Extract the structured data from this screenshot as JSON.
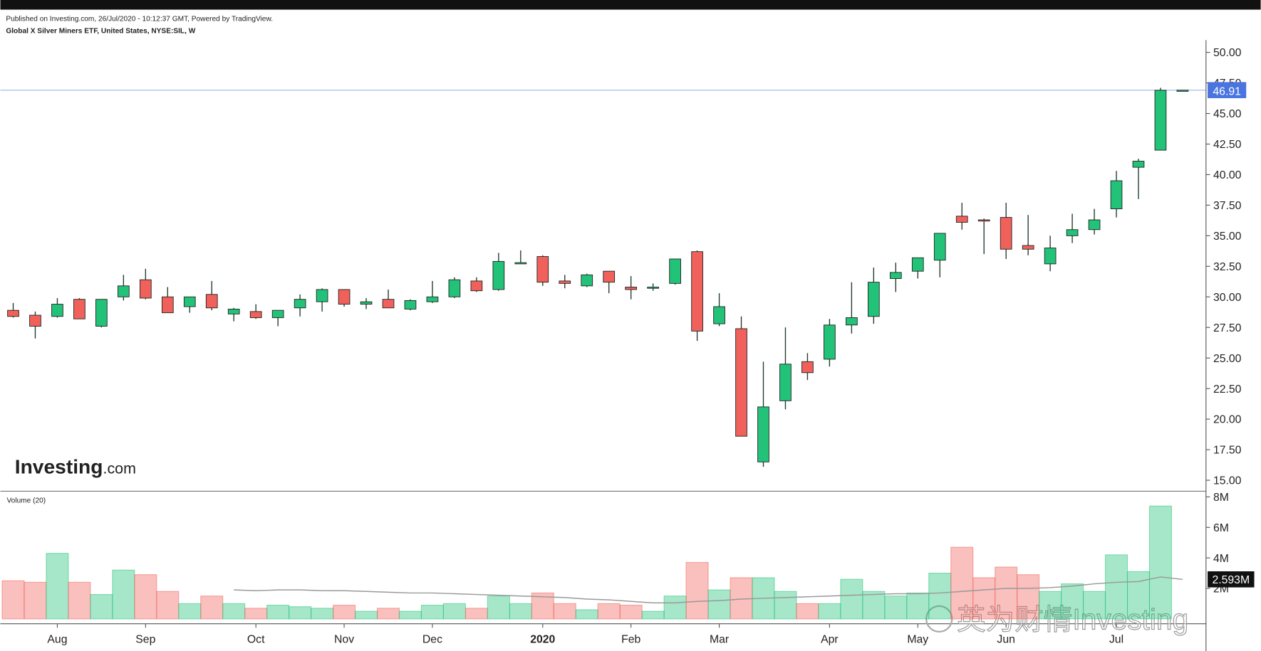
{
  "chart_data": {
    "type": "candlestick",
    "subtitle": "Published on Investing.com, 26/Jul/2020 - 10:12:37 GMT, Powered by TradingView.",
    "title": "Global X Silver Miners ETF, United States, NYSE:SIL, W",
    "logo": {
      "name": "Investing",
      "suffix": ".com"
    },
    "watermark": "英为财情Investing",
    "categories": [
      null,
      null,
      "Aug",
      null,
      null,
      null,
      "Sep",
      null,
      null,
      null,
      null,
      "Oct",
      null,
      null,
      null,
      "Nov",
      null,
      null,
      null,
      "Dec",
      null,
      null,
      null,
      null,
      "2020",
      null,
      null,
      null,
      "Feb",
      null,
      null,
      null,
      "Mar",
      null,
      null,
      null,
      null,
      "Apr",
      null,
      null,
      null,
      "May",
      null,
      null,
      null,
      "Jun",
      null,
      null,
      null,
      null,
      "Jul",
      null,
      null,
      null
    ],
    "open": [
      28.9,
      28.5,
      28.4,
      29.8,
      27.6,
      30.0,
      31.4,
      30.0,
      29.2,
      30.2,
      28.6,
      28.8,
      28.3,
      29.1,
      29.6,
      30.6,
      29.4,
      29.8,
      29.0,
      29.6,
      30.0,
      31.3,
      30.6,
      32.7,
      33.3,
      31.3,
      30.9,
      32.1,
      30.8,
      30.7,
      31.1,
      33.7,
      27.8,
      27.4,
      16.5,
      21.5,
      24.7,
      24.9,
      27.7,
      28.4,
      31.5,
      32.1,
      33.0,
      36.6,
      36.3,
      36.5,
      34.2,
      32.7,
      35.0,
      35.5,
      37.2,
      40.6,
      42.0,
      46.91
    ],
    "high": [
      29.5,
      28.8,
      29.9,
      29.9,
      29.8,
      31.8,
      32.3,
      30.8,
      30.0,
      31.3,
      29.1,
      29.4,
      28.9,
      30.2,
      30.7,
      30.6,
      29.9,
      30.6,
      29.8,
      31.3,
      31.6,
      31.6,
      33.6,
      33.8,
      33.4,
      31.8,
      31.9,
      32.1,
      31.7,
      31.1,
      33.1,
      33.8,
      30.3,
      28.4,
      24.7,
      27.5,
      25.4,
      28.2,
      31.2,
      32.4,
      32.8,
      33.2,
      35.2,
      37.7,
      36.4,
      37.7,
      36.7,
      35.0,
      36.8,
      37.2,
      40.3,
      41.3,
      47.1,
      46.91
    ],
    "low": [
      28.3,
      26.6,
      28.3,
      28.2,
      27.5,
      29.7,
      29.8,
      28.7,
      28.7,
      28.9,
      28.0,
      28.2,
      27.6,
      28.4,
      28.8,
      29.2,
      29.0,
      29.1,
      28.9,
      29.5,
      29.9,
      30.4,
      30.5,
      32.7,
      30.9,
      30.7,
      30.8,
      30.3,
      29.8,
      30.5,
      31.0,
      26.4,
      27.6,
      18.6,
      16.1,
      20.8,
      23.2,
      24.3,
      27.0,
      27.8,
      30.4,
      31.5,
      31.6,
      35.5,
      33.5,
      33.1,
      33.4,
      32.1,
      34.4,
      35.1,
      36.5,
      38.0,
      42.0,
      46.91
    ],
    "close": [
      28.4,
      27.6,
      29.4,
      28.2,
      29.8,
      30.9,
      29.9,
      28.7,
      30.0,
      29.1,
      29.0,
      28.3,
      28.9,
      29.8,
      30.6,
      29.4,
      29.6,
      29.1,
      29.7,
      30.0,
      31.4,
      30.5,
      32.9,
      32.8,
      31.2,
      31.1,
      31.8,
      31.2,
      30.6,
      30.8,
      33.1,
      27.2,
      29.2,
      18.6,
      21.0,
      24.5,
      23.8,
      27.7,
      28.3,
      31.2,
      32.0,
      33.2,
      35.2,
      36.1,
      36.2,
      33.9,
      33.9,
      34.0,
      35.5,
      36.3,
      39.5,
      41.1,
      46.9,
      46.91
    ],
    "up_color": "#22c379",
    "down_color": "#f1615b",
    "ylim": [
      14.1,
      51.0
    ],
    "yticks": [
      {
        "value": 15,
        "label": "15.00"
      },
      {
        "value": 17.5,
        "label": "17.50"
      },
      {
        "value": 20,
        "label": "20.00"
      },
      {
        "value": 22.5,
        "label": "22.50"
      },
      {
        "value": 25,
        "label": "25.00"
      },
      {
        "value": 27.5,
        "label": "27.50"
      },
      {
        "value": 30,
        "label": "30.00"
      },
      {
        "value": 32.5,
        "label": "32.50"
      },
      {
        "value": 35,
        "label": "35.00"
      },
      {
        "value": 37.5,
        "label": "37.50"
      },
      {
        "value": 40,
        "label": "40.00"
      },
      {
        "value": 42.5,
        "label": "42.50"
      },
      {
        "value": 45,
        "label": "45.00"
      },
      {
        "value": 47.5,
        "label": "47.50"
      },
      {
        "value": 50,
        "label": "50.00"
      }
    ],
    "last_price": 46.91,
    "last_price_color": "#4a74e0",
    "volume": {
      "label": "Volume (20)",
      "values": [
        2500000,
        2400000,
        4300000,
        2400000,
        1600000,
        3200000,
        2900000,
        1800000,
        1000000,
        1500000,
        1000000,
        700000,
        900000,
        800000,
        700000,
        900000,
        500000,
        700000,
        500000,
        900000,
        1000000,
        700000,
        1500000,
        1000000,
        1700000,
        1000000,
        600000,
        1000000,
        900000,
        500000,
        1500000,
        3700000,
        1900000,
        2700000,
        2700000,
        1800000,
        1000000,
        1000000,
        2600000,
        1800000,
        1500000,
        1700000,
        3000000,
        4700000,
        2700000,
        3400000,
        2900000,
        1800000,
        2300000,
        1800000,
        4200000,
        3100000,
        7400000,
        null
      ],
      "ylim": [
        0,
        8370000
      ],
      "yticks": [
        {
          "value": 2000000,
          "label": "2M"
        },
        {
          "value": 4000000,
          "label": "4M"
        },
        {
          "value": 6000000,
          "label": "6M"
        },
        {
          "value": 8000000,
          "label": "8M"
        }
      ]
    },
    "volume_ma": {
      "color": "#999999",
      "values": [
        null,
        null,
        null,
        null,
        null,
        null,
        null,
        null,
        null,
        null,
        1900000,
        1850000,
        1900000,
        1900000,
        1850000,
        1850000,
        1800000,
        1750000,
        1700000,
        1700000,
        1650000,
        1600000,
        1550000,
        1500000,
        1450000,
        1400000,
        1300000,
        1250000,
        1150000,
        1050000,
        1050000,
        1150000,
        1200000,
        1300000,
        1350000,
        1400000,
        1450000,
        1500000,
        1550000,
        1600000,
        1650000,
        1650000,
        1700000,
        1800000,
        1900000,
        2000000,
        2000000,
        2050000,
        2150000,
        2300000,
        2400000,
        2450000,
        2750000,
        2593000
      ],
      "last": {
        "value": 2593000,
        "label": "2.593M"
      }
    }
  }
}
